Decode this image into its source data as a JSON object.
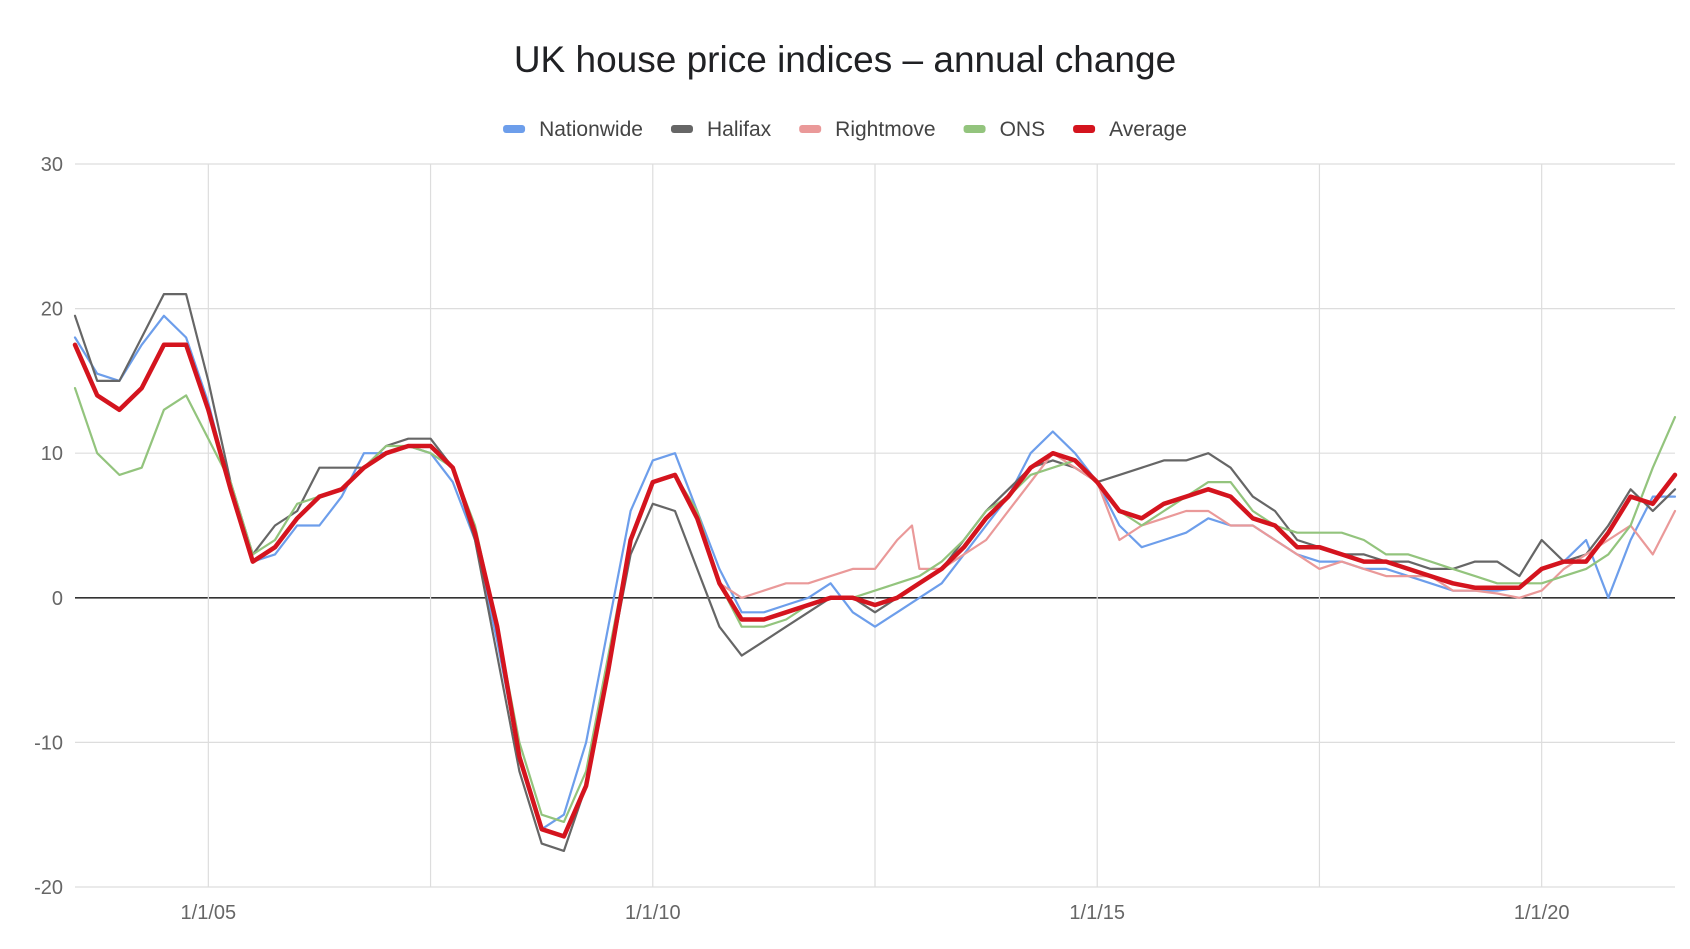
{
  "chart_data": {
    "type": "line",
    "title": "UK house price indices – annual change",
    "xlabel": "",
    "ylabel": "",
    "x_ticks": [
      "1/1/05",
      "1/1/10",
      "1/1/15",
      "1/1/20"
    ],
    "y_ticks": [
      "30",
      "20",
      "10",
      "0",
      "-10",
      "-20"
    ],
    "ylim": [
      -20,
      30
    ],
    "xlim": [
      "2003-07-01",
      "2021-07-01"
    ],
    "grid": true,
    "legend_position": "top",
    "series": [
      {
        "name": "Nationwide",
        "color": "#6d9eeb",
        "width": 2.2,
        "x": [
          "2003-07",
          "2003-10",
          "2004-01",
          "2004-04",
          "2004-07",
          "2004-10",
          "2005-01",
          "2005-04",
          "2005-07",
          "2005-10",
          "2006-01",
          "2006-04",
          "2006-07",
          "2006-10",
          "2007-01",
          "2007-04",
          "2007-07",
          "2007-10",
          "2008-01",
          "2008-04",
          "2008-07",
          "2008-10",
          "2009-01",
          "2009-04",
          "2009-07",
          "2009-10",
          "2010-01",
          "2010-04",
          "2010-07",
          "2010-10",
          "2011-01",
          "2011-04",
          "2011-07",
          "2011-10",
          "2012-01",
          "2012-04",
          "2012-07",
          "2012-10",
          "2013-01",
          "2013-04",
          "2013-07",
          "2013-10",
          "2014-01",
          "2014-04",
          "2014-07",
          "2014-10",
          "2015-01",
          "2015-04",
          "2015-07",
          "2015-10",
          "2016-01",
          "2016-04",
          "2016-07",
          "2016-10",
          "2017-01",
          "2017-04",
          "2017-07",
          "2017-10",
          "2018-01",
          "2018-04",
          "2018-07",
          "2018-10",
          "2019-01",
          "2019-04",
          "2019-07",
          "2019-10",
          "2020-01",
          "2020-04",
          "2020-07",
          "2020-10",
          "2021-01",
          "2021-04",
          "2021-07"
        ],
        "y": [
          18,
          15.5,
          15,
          17.5,
          19.5,
          18,
          13.5,
          7.5,
          2.5,
          3,
          5,
          5,
          7,
          10,
          10,
          10.5,
          10,
          8,
          4,
          -3,
          -11,
          -16,
          -15,
          -10,
          -2,
          6,
          9.5,
          10,
          6,
          2,
          -1,
          -1,
          -0.5,
          0,
          1,
          -1,
          -2,
          -1,
          0,
          1,
          3,
          5,
          7,
          10,
          11.5,
          10,
          8,
          5,
          3.5,
          4,
          4.5,
          5.5,
          5,
          5,
          4,
          3,
          2.5,
          2.5,
          2,
          2,
          1.5,
          1,
          0.5,
          0.5,
          0.5,
          0.7,
          2,
          2.5,
          4,
          0,
          4,
          7,
          7
        ]
      },
      {
        "name": "Halifax",
        "color": "#666666",
        "width": 2.2,
        "x": [
          "2003-07",
          "2003-10",
          "2004-01",
          "2004-04",
          "2004-07",
          "2004-10",
          "2005-01",
          "2005-04",
          "2005-07",
          "2005-10",
          "2006-01",
          "2006-04",
          "2006-07",
          "2006-10",
          "2007-01",
          "2007-04",
          "2007-07",
          "2007-10",
          "2008-01",
          "2008-04",
          "2008-07",
          "2008-10",
          "2009-01",
          "2009-04",
          "2009-07",
          "2009-10",
          "2010-01",
          "2010-04",
          "2010-07",
          "2010-10",
          "2011-01",
          "2011-04",
          "2011-07",
          "2011-10",
          "2012-01",
          "2012-04",
          "2012-07",
          "2012-10",
          "2013-01",
          "2013-04",
          "2013-07",
          "2013-10",
          "2014-01",
          "2014-04",
          "2014-07",
          "2014-10",
          "2015-01",
          "2015-04",
          "2015-07",
          "2015-10",
          "2016-01",
          "2016-04",
          "2016-07",
          "2016-10",
          "2017-01",
          "2017-04",
          "2017-07",
          "2017-10",
          "2018-01",
          "2018-04",
          "2018-07",
          "2018-10",
          "2019-01",
          "2019-04",
          "2019-07",
          "2019-10",
          "2020-01",
          "2020-04",
          "2020-07",
          "2020-10",
          "2021-01",
          "2021-04",
          "2021-07"
        ],
        "y": [
          19.5,
          15,
          15,
          18,
          21,
          21,
          15,
          8,
          3,
          5,
          6,
          9,
          9,
          9,
          10.5,
          11,
          11,
          9,
          4,
          -4,
          -12,
          -17,
          -17.5,
          -13,
          -5,
          3,
          6.5,
          6,
          2,
          -2,
          -4,
          -3,
          -2,
          -1,
          0,
          0,
          -1,
          0,
          1,
          2,
          4,
          6,
          7.5,
          9,
          9.5,
          9,
          8,
          8.5,
          9,
          9.5,
          9.5,
          10,
          9,
          7,
          6,
          4,
          3.5,
          3,
          3,
          2.5,
          2.5,
          2,
          2,
          2.5,
          2.5,
          1.5,
          4,
          2.5,
          3,
          5,
          7.5,
          6,
          7.5
        ]
      },
      {
        "name": "Rightmove",
        "color": "#ea9999",
        "width": 2.2,
        "x": [
          "2010-10",
          "2011-01",
          "2011-04",
          "2011-07",
          "2011-10",
          "2012-01",
          "2012-04",
          "2012-07",
          "2012-10",
          "2012-12",
          "2013-01",
          "2013-04",
          "2013-07",
          "2013-10",
          "2014-01",
          "2014-04",
          "2014-07",
          "2014-10",
          "2015-01",
          "2015-04",
          "2015-07",
          "2015-10",
          "2016-01",
          "2016-04",
          "2016-07",
          "2016-10",
          "2017-01",
          "2017-04",
          "2017-07",
          "2017-10",
          "2018-01",
          "2018-04",
          "2018-07",
          "2018-10",
          "2019-01",
          "2019-04",
          "2019-07",
          "2019-10",
          "2020-01",
          "2020-04",
          "2020-07",
          "2020-10",
          "2021-01",
          "2021-04",
          "2021-07"
        ],
        "y": [
          1,
          0,
          0.5,
          1,
          1,
          1.5,
          2,
          2,
          4,
          5,
          2,
          2,
          3,
          4,
          6,
          8,
          10,
          9,
          8,
          4,
          5,
          5.5,
          6,
          6,
          5,
          5,
          4,
          3,
          2,
          2.5,
          2,
          1.5,
          1.5,
          1.5,
          0.5,
          0.5,
          0.3,
          0,
          0.5,
          2,
          3,
          4,
          5,
          3,
          6
        ]
      },
      {
        "name": "ONS",
        "color": "#93c47d",
        "width": 2.2,
        "x": [
          "2003-07",
          "2003-10",
          "2004-01",
          "2004-04",
          "2004-07",
          "2004-10",
          "2005-01",
          "2005-04",
          "2005-07",
          "2005-10",
          "2006-01",
          "2006-04",
          "2006-07",
          "2006-10",
          "2007-01",
          "2007-04",
          "2007-07",
          "2007-10",
          "2008-01",
          "2008-04",
          "2008-07",
          "2008-10",
          "2009-01",
          "2009-04",
          "2009-07",
          "2009-10",
          "2010-01",
          "2010-04",
          "2010-07",
          "2010-10",
          "2011-01",
          "2011-04",
          "2011-07",
          "2011-10",
          "2012-01",
          "2012-04",
          "2012-07",
          "2012-10",
          "2013-01",
          "2013-04",
          "2013-07",
          "2013-10",
          "2014-01",
          "2014-04",
          "2014-07",
          "2014-10",
          "2015-01",
          "2015-04",
          "2015-07",
          "2015-10",
          "2016-01",
          "2016-04",
          "2016-07",
          "2016-10",
          "2017-01",
          "2017-04",
          "2017-07",
          "2017-10",
          "2018-01",
          "2018-04",
          "2018-07",
          "2018-10",
          "2019-01",
          "2019-04",
          "2019-07",
          "2019-10",
          "2020-01",
          "2020-04",
          "2020-07",
          "2020-10",
          "2021-01",
          "2021-04",
          "2021-07"
        ],
        "y": [
          14.5,
          10,
          8.5,
          9,
          13,
          14,
          11,
          8,
          3,
          4,
          6.5,
          7,
          7.5,
          9,
          10.5,
          10.5,
          10,
          9,
          5,
          -2,
          -10,
          -15,
          -15.5,
          -12,
          -4,
          4,
          8,
          8.5,
          6,
          1,
          -2,
          -2,
          -1.5,
          -0.5,
          0,
          0,
          0.5,
          1,
          1.5,
          2.5,
          4,
          6,
          7,
          8.5,
          9,
          9.5,
          8,
          6,
          5,
          6,
          7,
          8,
          8,
          6,
          5,
          4.5,
          4.5,
          4.5,
          4,
          3,
          3,
          2.5,
          2,
          1.5,
          1,
          1,
          1,
          1.5,
          2,
          3,
          5,
          9,
          12.5
        ]
      },
      {
        "name": "Average",
        "color": "#d4141e",
        "width": 4.5,
        "x": [
          "2003-07",
          "2003-10",
          "2004-01",
          "2004-04",
          "2004-07",
          "2004-10",
          "2005-01",
          "2005-04",
          "2005-07",
          "2005-10",
          "2006-01",
          "2006-04",
          "2006-07",
          "2006-10",
          "2007-01",
          "2007-04",
          "2007-07",
          "2007-10",
          "2008-01",
          "2008-04",
          "2008-07",
          "2008-10",
          "2009-01",
          "2009-04",
          "2009-07",
          "2009-10",
          "2010-01",
          "2010-04",
          "2010-07",
          "2010-10",
          "2011-01",
          "2011-04",
          "2011-07",
          "2011-10",
          "2012-01",
          "2012-04",
          "2012-07",
          "2012-10",
          "2013-01",
          "2013-04",
          "2013-07",
          "2013-10",
          "2014-01",
          "2014-04",
          "2014-07",
          "2014-10",
          "2015-01",
          "2015-04",
          "2015-07",
          "2015-10",
          "2016-01",
          "2016-04",
          "2016-07",
          "2016-10",
          "2017-01",
          "2017-04",
          "2017-07",
          "2017-10",
          "2018-01",
          "2018-04",
          "2018-07",
          "2018-10",
          "2019-01",
          "2019-04",
          "2019-07",
          "2019-10",
          "2020-01",
          "2020-04",
          "2020-07",
          "2020-10",
          "2021-01",
          "2021-04",
          "2021-07"
        ],
        "y": [
          17.5,
          14,
          13,
          14.5,
          17.5,
          17.5,
          13,
          7.5,
          2.5,
          3.5,
          5.5,
          7,
          7.5,
          9,
          10,
          10.5,
          10.5,
          9,
          4.5,
          -2,
          -11,
          -16,
          -16.5,
          -13,
          -5,
          4,
          8,
          8.5,
          5.5,
          1,
          -1.5,
          -1.5,
          -1,
          -0.5,
          0,
          0,
          -0.5,
          0,
          1,
          2,
          3.5,
          5.5,
          7,
          9,
          10,
          9.5,
          8,
          6,
          5.5,
          6.5,
          7,
          7.5,
          7,
          5.5,
          5,
          3.5,
          3.5,
          3,
          2.5,
          2.5,
          2,
          1.5,
          1,
          0.7,
          0.7,
          0.7,
          2,
          2.5,
          2.5,
          4.5,
          7,
          6.5,
          8.5
        ]
      }
    ]
  }
}
